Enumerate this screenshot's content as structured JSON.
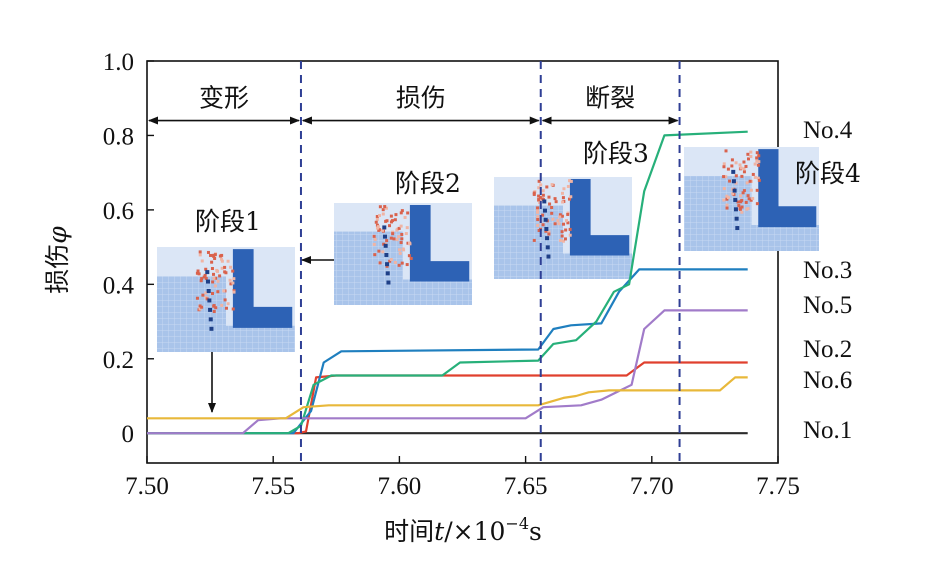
{
  "chart_data": {
    "type": "line",
    "title": "",
    "xlabel_prefix": "时间",
    "xlabel_var": "t",
    "xlabel_unit": "/×10",
    "xlabel_exp": "−4",
    "xlabel_suffix": "s",
    "ylabel_prefix": "损伤",
    "ylabel_var": "φ",
    "xlim": [
      7.5,
      7.75
    ],
    "ylim": [
      -0.08,
      1.0
    ],
    "x_ticks": [
      7.5,
      7.55,
      7.6,
      7.65,
      7.7,
      7.75
    ],
    "x_tick_labels": [
      "7.50",
      "7.55",
      "7.60",
      "7.65",
      "7.70",
      "7.75"
    ],
    "y_ticks": [
      0,
      0.2,
      0.4,
      0.6,
      0.8,
      1.0
    ],
    "y_tick_labels": [
      "0",
      "0.2",
      "0.4",
      "0.6",
      "0.8",
      "1.0"
    ],
    "phase_boundaries": [
      7.561,
      7.656,
      7.711
    ],
    "phases": [
      {
        "label": "变形",
        "x0": 7.5,
        "x1": 7.561
      },
      {
        "label": "损伤",
        "x0": 7.561,
        "x1": 7.656
      },
      {
        "label": "断裂",
        "x0": 7.656,
        "x1": 7.711
      }
    ],
    "phase_arrow_y": 0.84,
    "stages": [
      {
        "label": "阶段1"
      },
      {
        "label": "阶段2"
      },
      {
        "label": "阶段3"
      },
      {
        "label": "阶段4"
      }
    ],
    "series": [
      {
        "name": "No.1",
        "color": "#2b2b2b",
        "points": [
          [
            7.5,
            0
          ],
          [
            7.738,
            0
          ]
        ]
      },
      {
        "name": "No.2",
        "color": "#e0402e",
        "points": [
          [
            7.5,
            0
          ],
          [
            7.56,
            0
          ],
          [
            7.563,
            0.005
          ],
          [
            7.567,
            0.15
          ],
          [
            7.575,
            0.155
          ],
          [
            7.69,
            0.155
          ],
          [
            7.697,
            0.19
          ],
          [
            7.738,
            0.19
          ]
        ]
      },
      {
        "name": "No.3",
        "color": "#1f7fbf",
        "points": [
          [
            7.5,
            0
          ],
          [
            7.558,
            0
          ],
          [
            7.565,
            0.06
          ],
          [
            7.57,
            0.19
          ],
          [
            7.577,
            0.22
          ],
          [
            7.655,
            0.225
          ],
          [
            7.661,
            0.28
          ],
          [
            7.668,
            0.29
          ],
          [
            7.68,
            0.295
          ],
          [
            7.687,
            0.38
          ],
          [
            7.695,
            0.44
          ],
          [
            7.738,
            0.44
          ]
        ]
      },
      {
        "name": "No.4",
        "color": "#27b07a",
        "points": [
          [
            7.5,
            0
          ],
          [
            7.556,
            0
          ],
          [
            7.561,
            0.02
          ],
          [
            7.566,
            0.13
          ],
          [
            7.573,
            0.155
          ],
          [
            7.617,
            0.155
          ],
          [
            7.624,
            0.19
          ],
          [
            7.655,
            0.195
          ],
          [
            7.661,
            0.24
          ],
          [
            7.67,
            0.25
          ],
          [
            7.678,
            0.3
          ],
          [
            7.685,
            0.38
          ],
          [
            7.691,
            0.4
          ],
          [
            7.697,
            0.65
          ],
          [
            7.705,
            0.8
          ],
          [
            7.738,
            0.81
          ]
        ]
      },
      {
        "name": "No.5",
        "color": "#a17bc9",
        "points": [
          [
            7.5,
            0
          ],
          [
            7.538,
            0
          ],
          [
            7.544,
            0.035
          ],
          [
            7.553,
            0.04
          ],
          [
            7.65,
            0.04
          ],
          [
            7.657,
            0.07
          ],
          [
            7.672,
            0.075
          ],
          [
            7.68,
            0.09
          ],
          [
            7.686,
            0.11
          ],
          [
            7.692,
            0.13
          ],
          [
            7.697,
            0.28
          ],
          [
            7.705,
            0.33
          ],
          [
            7.738,
            0.33
          ]
        ]
      },
      {
        "name": "No.6",
        "color": "#e8b83a",
        "points": [
          [
            7.5,
            0.04
          ],
          [
            7.555,
            0.04
          ],
          [
            7.562,
            0.07
          ],
          [
            7.572,
            0.075
          ],
          [
            7.655,
            0.075
          ],
          [
            7.665,
            0.095
          ],
          [
            7.67,
            0.1
          ],
          [
            7.675,
            0.11
          ],
          [
            7.683,
            0.115
          ],
          [
            7.727,
            0.115
          ],
          [
            7.733,
            0.15
          ],
          [
            7.738,
            0.15
          ]
        ]
      }
    ]
  }
}
